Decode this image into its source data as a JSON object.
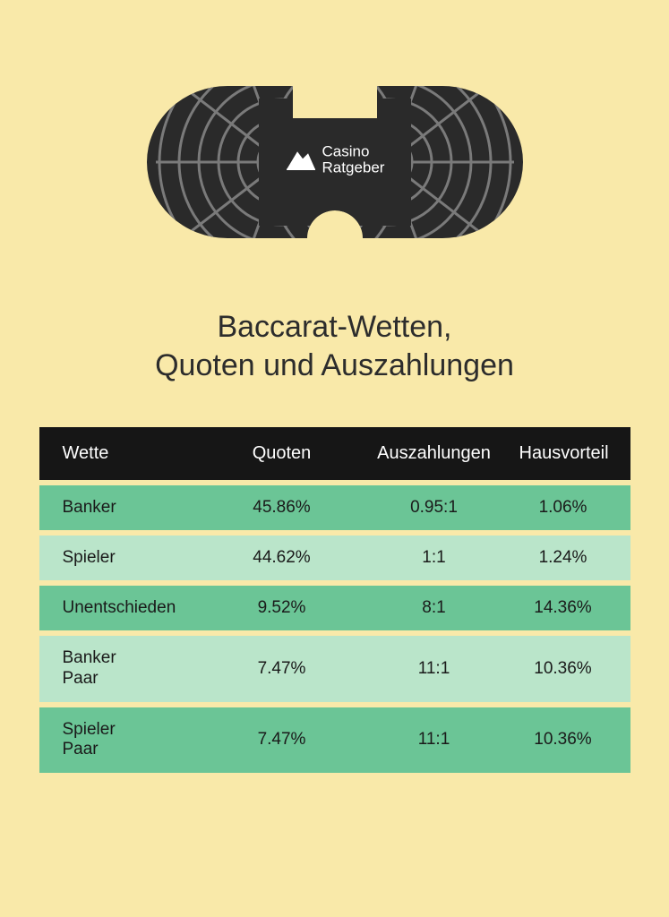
{
  "logo": {
    "line1": "Casino",
    "line2": "Ratgeber"
  },
  "title": {
    "line1": "Baccarat-Wetten,",
    "line2": "Quoten und Auszahlungen"
  },
  "table": {
    "headers": {
      "bet": "Wette",
      "odds": "Quoten",
      "payout": "Auszahlungen",
      "edge": "Hausvorteil"
    },
    "rows": [
      {
        "bet": "Banker",
        "odds": "45.86%",
        "payout": "0.95:1",
        "edge": "1.06%"
      },
      {
        "bet": "Spieler",
        "odds": "44.62%",
        "payout": "1:1",
        "edge": "1.24%"
      },
      {
        "bet": "Unentschieden",
        "odds": "9.52%",
        "payout": "8:1",
        "edge": "14.36%"
      },
      {
        "bet": "Banker\nPaar",
        "odds": "7.47%",
        "payout": "11:1",
        "edge": "10.36%"
      },
      {
        "bet": "Spieler\nPaar",
        "odds": "7.47%",
        "payout": "11:1",
        "edge": "10.36%"
      }
    ]
  },
  "colors": {
    "background": "#f9e9a9",
    "header_bg": "#161616",
    "header_text": "#ffffff",
    "row_dark": "#6bc596",
    "row_light": "#bae5ca",
    "text": "#1a1a1a",
    "table_fill": "#2a2a2a",
    "table_lines": "#7a7a7a"
  }
}
